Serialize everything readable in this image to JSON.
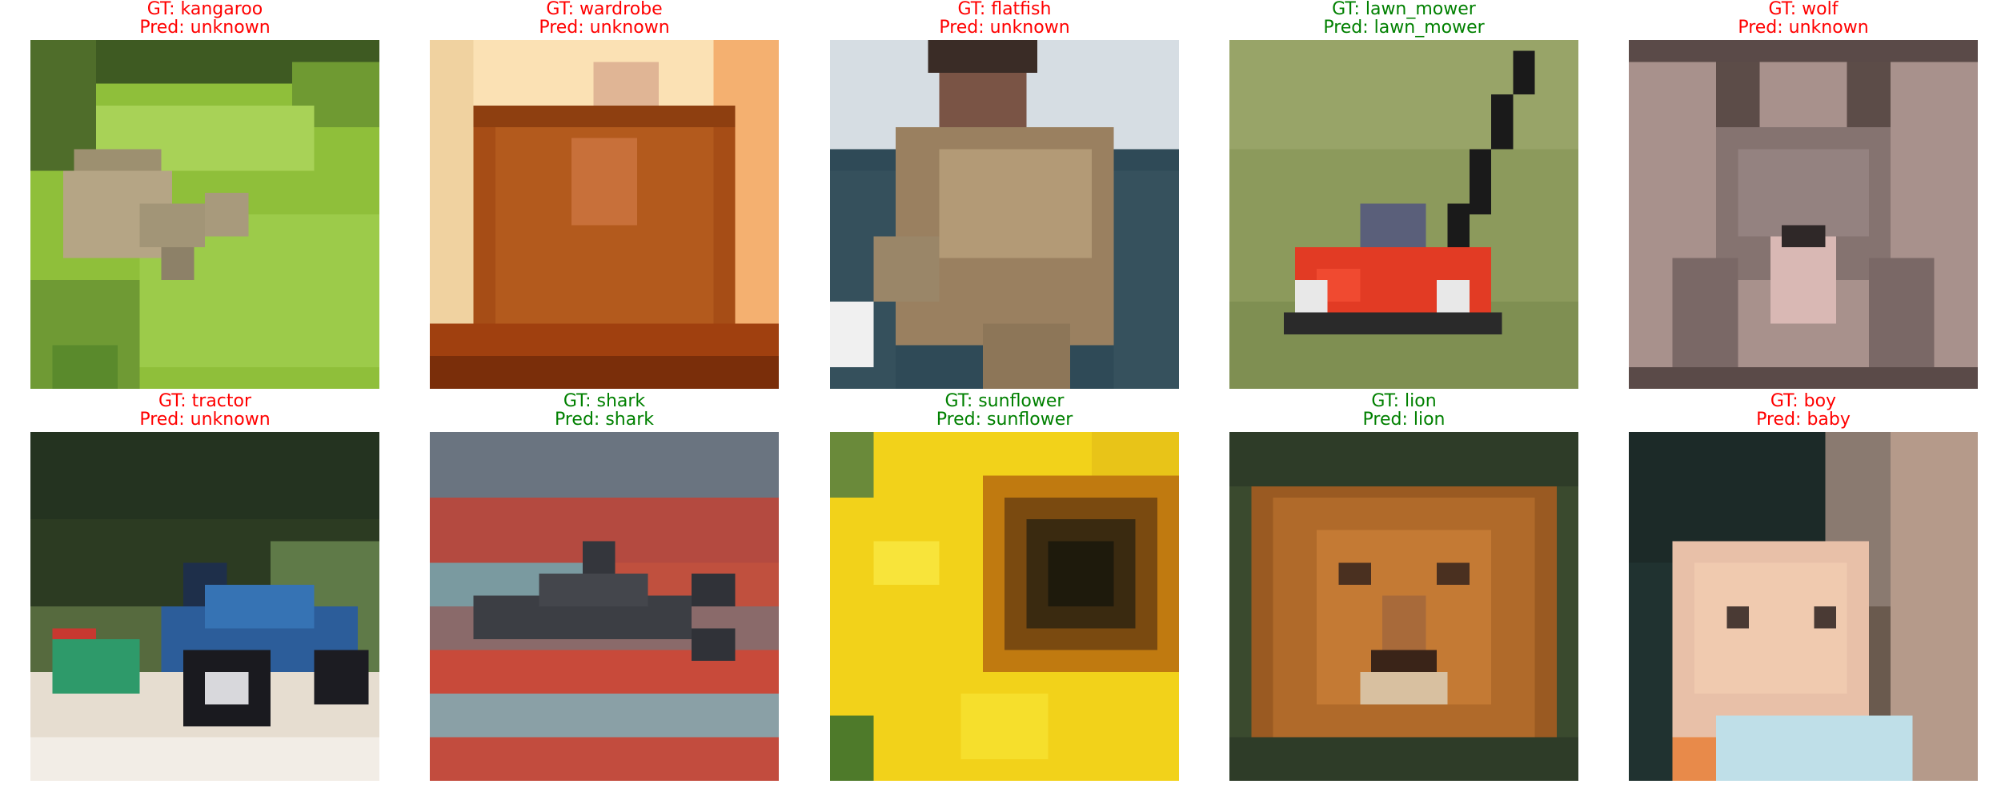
{
  "colors": {
    "correct": "#008000",
    "incorrect": "#ff0000"
  },
  "panels": [
    {
      "gt": "GT: kangaroo",
      "pred": "Pred: unknown",
      "correct": false,
      "image": "kangaroo on grass"
    },
    {
      "gt": "GT: wardrobe",
      "pred": "Pred: unknown",
      "correct": false,
      "image": "wooden wardrobe"
    },
    {
      "gt": "GT: flatfish",
      "pred": "Pred: unknown",
      "correct": false,
      "image": "person holding flatfish"
    },
    {
      "gt": "GT: lawn_mower",
      "pred": "Pred: lawn_mower",
      "correct": true,
      "image": "red lawn mower on grass"
    },
    {
      "gt": "GT: wolf",
      "pred": "Pred: unknown",
      "correct": false,
      "image": "wolf face"
    },
    {
      "gt": "GT: tractor",
      "pred": "Pred: unknown",
      "correct": false,
      "image": "blue tractor"
    },
    {
      "gt": "GT: shark",
      "pred": "Pred: shark",
      "correct": true,
      "image": "shark over red textured background"
    },
    {
      "gt": "GT: sunflower",
      "pred": "Pred: sunflower",
      "correct": true,
      "image": "yellow sunflower"
    },
    {
      "gt": "GT: lion",
      "pred": "Pred: lion",
      "correct": true,
      "image": "lion face"
    },
    {
      "gt": "GT: boy",
      "pred": "Pred: baby",
      "correct": false,
      "image": "child face"
    }
  ]
}
